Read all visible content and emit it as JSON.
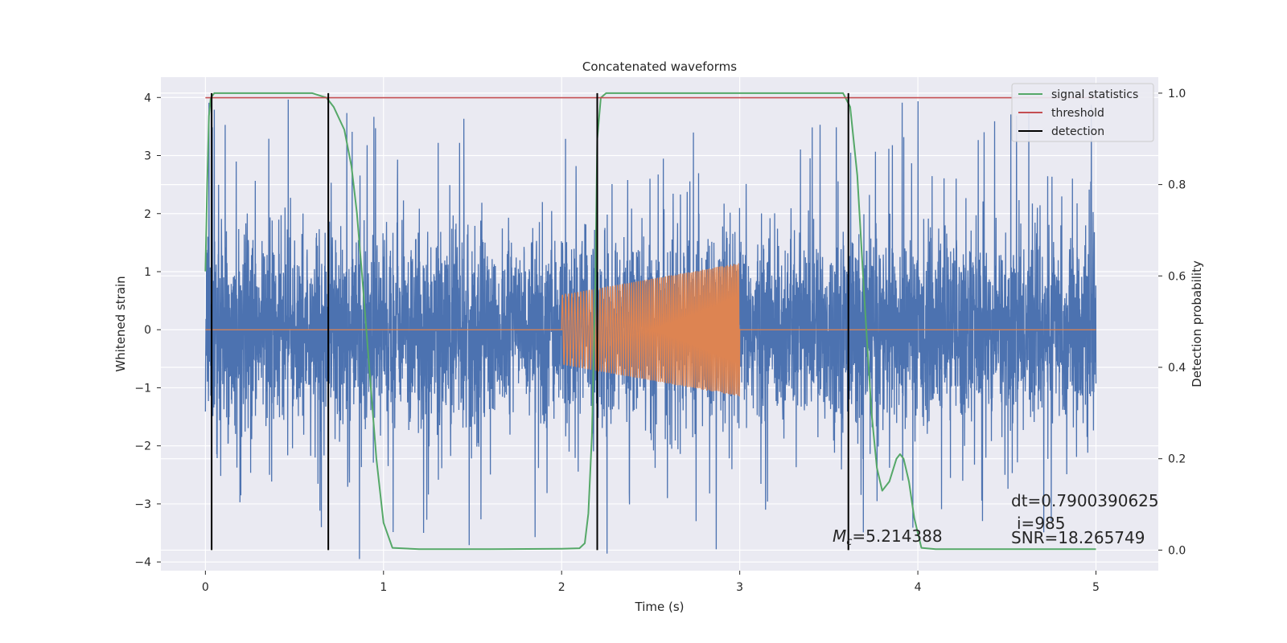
{
  "chart_data": {
    "type": "line",
    "title": "Concatenated waveforms",
    "xlabel": "Time (s)",
    "ylabel": "Whitened strain",
    "ylabel_right": "Detection probability",
    "xlim": [
      -0.25,
      5.35
    ],
    "ylim": [
      -4.15,
      4.35
    ],
    "ylim_right": [
      -0.045,
      1.035
    ],
    "x_ticks": [
      0,
      1,
      2,
      3,
      4,
      5
    ],
    "y_ticks": [
      -4,
      -3,
      -2,
      -1,
      0,
      1,
      2,
      3,
      4
    ],
    "y_ticks_right": [
      0.0,
      0.2,
      0.4,
      0.6,
      0.8,
      1.0
    ],
    "x_tick_labels": [
      "0",
      "1",
      "2",
      "3",
      "4",
      "5"
    ],
    "y_tick_labels": [
      "−4",
      "−3",
      "−2",
      "−1",
      "0",
      "1",
      "2",
      "3",
      "4"
    ],
    "y_tick_labels_right": [
      "0.0",
      "0.2",
      "0.4",
      "0.6",
      "0.8",
      "1.0"
    ],
    "grid": true,
    "legend_position": "top-right",
    "legend": [
      "signal statistics",
      "threshold",
      "detection"
    ],
    "colors": {
      "background": "#eaeaf2",
      "grid": "#ffffff",
      "noise": "#4c72b0",
      "injected_signal": "#dd8452",
      "signal_statistics": "#55a868",
      "threshold": "#c44e52",
      "detection": "#000000"
    },
    "series": [
      {
        "axis": "left",
        "description": "whitened noisy strain, roughly ±2 with spikes up to ±4",
        "x_range": [
          0,
          5
        ],
        "amplitude_typical": 1.6,
        "amplitude_max": 4.0
      },
      {
        "axis": "left",
        "description": "injected chirp waveform, zero outside [2, 3]",
        "x_range": [
          2,
          3
        ],
        "amplitude_start": 0.6,
        "amplitude_end": 1.15
      },
      {
        "name": "signal statistics",
        "axis": "right",
        "x": [
          0.0,
          0.01,
          0.02,
          0.03,
          0.05,
          0.08,
          0.6,
          0.68,
          0.72,
          0.78,
          0.82,
          0.85,
          0.88,
          0.92,
          0.96,
          1.0,
          1.05,
          1.2,
          1.6,
          2.0,
          2.1,
          2.13,
          2.15,
          2.17,
          2.19,
          2.2,
          2.22,
          2.25,
          2.3,
          3.0,
          3.58,
          3.62,
          3.66,
          3.7,
          3.74,
          3.77,
          3.8,
          3.84,
          3.88,
          3.9,
          3.92,
          3.95,
          3.98,
          4.02,
          4.1,
          4.5,
          5.0
        ],
        "y": [
          0.61,
          0.8,
          0.95,
          0.99,
          1.0,
          1.0,
          1.0,
          0.99,
          0.97,
          0.92,
          0.84,
          0.74,
          0.6,
          0.4,
          0.2,
          0.06,
          0.005,
          0.002,
          0.002,
          0.003,
          0.004,
          0.015,
          0.08,
          0.25,
          0.6,
          0.9,
          0.99,
          1.0,
          1.0,
          1.0,
          1.0,
          0.97,
          0.82,
          0.55,
          0.3,
          0.18,
          0.13,
          0.15,
          0.2,
          0.21,
          0.2,
          0.15,
          0.07,
          0.005,
          0.002,
          0.002,
          0.002
        ]
      },
      {
        "name": "threshold",
        "axis": "right",
        "x": [
          0,
          5
        ],
        "y": [
          0.99,
          0.99
        ]
      },
      {
        "name": "detection",
        "axis": "right",
        "type": "vlines",
        "x": [
          0.035,
          0.69,
          2.2,
          3.61
        ],
        "ymin": 0.0,
        "ymax": 1.0
      }
    ],
    "annotations": [
      {
        "text_prefix": "M",
        "text_sub": "c",
        "text_rest": "=5.214388"
      },
      {
        "text": "dt=0.7900390625"
      },
      {
        "text": "i=985"
      },
      {
        "text": "SNR=18.265749"
      }
    ]
  }
}
